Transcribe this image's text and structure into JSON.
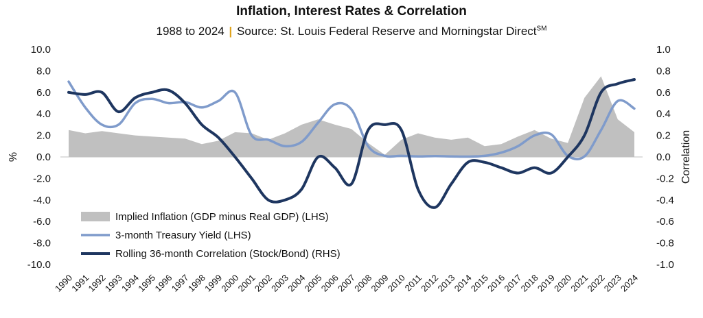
{
  "header": {
    "title": "Inflation, Interest Rates & Correlation",
    "subtitle_years": "1988 to 2024",
    "subtitle_separator": "|",
    "subtitle_source": "Source: St. Louis Federal Reserve and Morningstar Direct",
    "subtitle_sup": "SM"
  },
  "chart_data": {
    "type": "line",
    "x": [
      1990,
      1991,
      1992,
      1993,
      1994,
      1995,
      1996,
      1997,
      1998,
      1999,
      2000,
      2001,
      2002,
      2003,
      2004,
      2005,
      2006,
      2007,
      2008,
      2009,
      2010,
      2011,
      2012,
      2013,
      2014,
      2015,
      2016,
      2017,
      2018,
      2019,
      2020,
      2021,
      2022,
      2023,
      2024
    ],
    "x_tick_labels": [
      "1990",
      "1991",
      "1992",
      "1993",
      "1994",
      "1995",
      "1996",
      "1997",
      "1998",
      "1999",
      "2000",
      "2001",
      "2002",
      "2003",
      "2004",
      "2005",
      "2006",
      "2007",
      "2008",
      "2009",
      "2010",
      "2011",
      "2012",
      "2013",
      "2014",
      "2015",
      "2016",
      "2017",
      "2018",
      "2019",
      "2020",
      "2021",
      "2022",
      "2023",
      "2024"
    ],
    "ylabel_left": "%",
    "ylabel_right": "Correlation",
    "ylim_left": [
      -10,
      10
    ],
    "ylim_right": [
      -1.0,
      1.0
    ],
    "yticks_left": [
      "10.0",
      "8.0",
      "6.0",
      "4.0",
      "2.0",
      "0.0",
      "-2.0",
      "-4.0",
      "-6.0",
      "-8.0",
      "-10.0"
    ],
    "yticks_right": [
      "1.0",
      "0.8",
      "0.6",
      "0.4",
      "0.2",
      "0.0",
      "-0.2",
      "-0.4",
      "-0.6",
      "-0.8",
      "-1.0"
    ],
    "legend_position": "bottom-left",
    "series": [
      {
        "name": "Implied Inflation (GDP minus Real GDP) (LHS)",
        "kind": "area",
        "axis": "left",
        "color": "#c0c0c0",
        "values": [
          2.5,
          2.2,
          2.4,
          2.2,
          2.0,
          1.9,
          1.8,
          1.7,
          1.2,
          1.5,
          2.3,
          2.2,
          1.6,
          2.2,
          3.0,
          3.5,
          3.0,
          2.6,
          1.3,
          0.2,
          1.6,
          2.2,
          1.8,
          1.6,
          1.8,
          1.0,
          1.2,
          1.9,
          2.5,
          1.7,
          1.3,
          5.5,
          7.5,
          3.5,
          2.3
        ]
      },
      {
        "name": "3-month Treasury Yield (LHS)",
        "kind": "line",
        "axis": "left",
        "color": "#7f9bcb",
        "values": [
          7.0,
          4.6,
          3.0,
          3.0,
          5.0,
          5.4,
          5.0,
          5.1,
          4.6,
          5.2,
          6.0,
          2.0,
          1.6,
          1.0,
          1.4,
          3.2,
          4.9,
          4.4,
          1.0,
          0.1,
          0.1,
          0.05,
          0.08,
          0.05,
          0.03,
          0.1,
          0.4,
          1.0,
          2.0,
          2.1,
          0.1,
          0.05,
          2.5,
          5.2,
          4.5
        ]
      },
      {
        "name": "Rolling 36-month Correlation (Stock/Bond) (RHS)",
        "kind": "line",
        "axis": "right",
        "color": "#1e3660",
        "values": [
          0.6,
          0.58,
          0.6,
          0.42,
          0.55,
          0.6,
          0.62,
          0.5,
          0.3,
          0.18,
          0.0,
          -0.2,
          -0.4,
          -0.4,
          -0.3,
          0.0,
          -0.1,
          -0.25,
          0.25,
          0.3,
          0.25,
          -0.3,
          -0.47,
          -0.25,
          -0.05,
          -0.05,
          -0.1,
          -0.15,
          -0.1,
          -0.15,
          0.0,
          0.2,
          0.6,
          0.68,
          0.72
        ]
      }
    ]
  }
}
